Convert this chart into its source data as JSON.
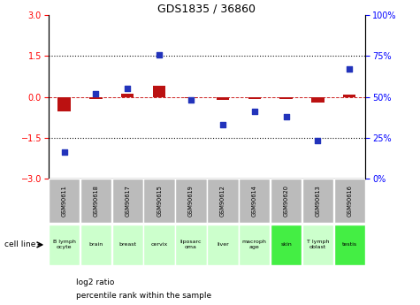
{
  "title": "GDS1835 / 36860",
  "samples": [
    "GSM90611",
    "GSM90618",
    "GSM90617",
    "GSM90615",
    "GSM90619",
    "GSM90612",
    "GSM90614",
    "GSM90620",
    "GSM90613",
    "GSM90616"
  ],
  "cell_types": [
    "B lymph\nocyte",
    "brain",
    "breast",
    "cervix",
    "liposarc\noma",
    "liver",
    "macroph\nage",
    "skin",
    "T lymph\noblast",
    "testis"
  ],
  "cell_bg": [
    "#ccffcc",
    "#ccffcc",
    "#ccffcc",
    "#ccffcc",
    "#ccffcc",
    "#ccffcc",
    "#ccffcc",
    "#44ee44",
    "#ccffcc",
    "#44ee44"
  ],
  "log2_ratio": [
    -0.55,
    -0.08,
    0.1,
    0.4,
    -0.05,
    -0.12,
    -0.07,
    -0.07,
    -0.22,
    0.08
  ],
  "percentile_rank": [
    16,
    52,
    55,
    76,
    48,
    33,
    41,
    38,
    23,
    67
  ],
  "ylim_left": [
    -3,
    3
  ],
  "ylim_right": [
    0,
    100
  ],
  "yticks_left": [
    -3,
    -1.5,
    0,
    1.5,
    3
  ],
  "yticks_right": [
    0,
    25,
    50,
    75,
    100
  ],
  "bar_color": "#bb1111",
  "scatter_color": "#2233bb",
  "hline_color": "#cc2222",
  "dotted_color": "#111111",
  "sample_bg": "#bbbbbb",
  "legend_red": "#bb1111",
  "legend_blue": "#2233bb"
}
